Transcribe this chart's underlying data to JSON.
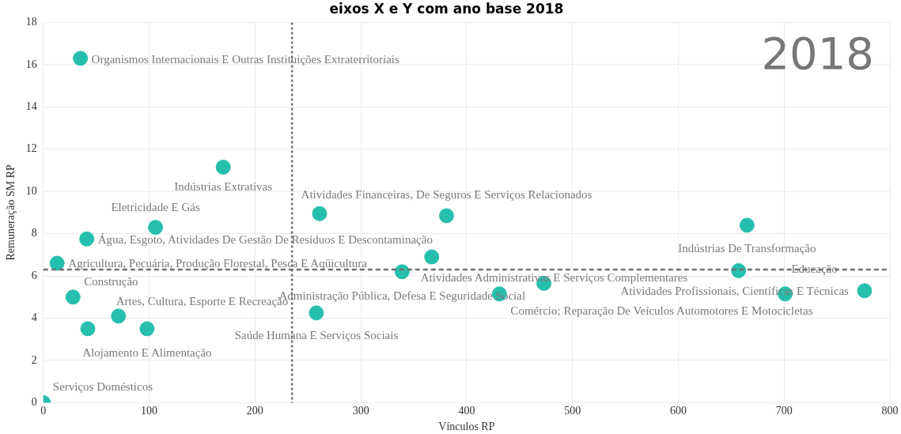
{
  "chart_data": {
    "type": "scatter",
    "title": "eixos X e Y com ano base 2018",
    "xlabel": "Vínculos RP",
    "ylabel": "Remuneração SM RP",
    "x": [
      35,
      170,
      261,
      381,
      106,
      41,
      13,
      367,
      339,
      657,
      665,
      28,
      71,
      42,
      98,
      258,
      473,
      431,
      701,
      776,
      0
    ],
    "series": [
      {
        "color": "#26bfad",
        "values": [
          16.3,
          11.15,
          8.95,
          8.85,
          8.3,
          7.75,
          6.6,
          6.9,
          6.2,
          6.25,
          8.4,
          5.0,
          4.1,
          3.5,
          3.5,
          4.25,
          5.65,
          5.15,
          5.15,
          5.3,
          0
        ]
      }
    ],
    "xlim": [
      0,
      800
    ],
    "xticks": [
      0,
      100,
      200,
      300,
      400,
      500,
      600,
      700,
      800
    ],
    "ylim": [
      0,
      18
    ],
    "yticks": [
      0,
      2,
      4,
      6,
      8,
      10,
      12,
      14,
      16,
      18
    ],
    "grid": true,
    "marker": "circle",
    "legend": false,
    "ref_lines": [
      {
        "axis": "x",
        "value": 235,
        "color": "#707070",
        "line_style": "dotted"
      },
      {
        "axis": "y",
        "value": 6.3,
        "color": "#707070",
        "line_style": "dashed"
      }
    ],
    "annotations": [
      "2018",
      {
        "text": "Organismos Internacionais E Outras Instituições Extraterritoriais",
        "x": 35,
        "y": 16.3
      },
      {
        "text": "Indústrias Extrativas",
        "x": 170,
        "y": 11.15
      },
      {
        "text": "Atividades Financeiras, De Seguros E Serviços Relacionados",
        "x": 381,
        "y": 8.85
      },
      {
        "text": "Eletricidade E Gás",
        "x": 106,
        "y": 8.3
      },
      {
        "text": "Água, Esgoto, Atividades De Gestão De Resíduos E Descontaminação",
        "x": 41,
        "y": 7.75
      },
      {
        "text": "Agricultura, Pecuária, Produção Florestal, Pesca E Aqüicultura",
        "x": 13,
        "y": 6.6
      },
      {
        "text": "Atividades Administrativas E Serviços Complementares",
        "x": 367,
        "y": 6.9
      },
      {
        "text": "Administração Pública, Defesa E Seguridade Social",
        "x": 339,
        "y": 6.2
      },
      {
        "text": "Construção",
        "x": 28,
        "y": 5.0
      },
      {
        "text": "Artes, Cultura, Esporte E Recreação",
        "x": 71,
        "y": 4.1
      },
      {
        "text": "Saúde Humana E Serviços Sociais",
        "x": 258,
        "y": 4.25
      },
      {
        "text": "Alojamento E Alimentação",
        "x": 98,
        "y": 3.5
      },
      {
        "text": "Serviços Domésticos",
        "x": 0,
        "y": 0
      },
      {
        "text": "Indústrias De Transformação",
        "x": 665,
        "y": 8.4
      },
      {
        "text": "Educação",
        "x": 701,
        "y": 5.15
      },
      {
        "text": "Atividades Profissionais, Científicas E Técnicas",
        "x": 776,
        "y": 5.3
      },
      {
        "text": "Comércio; Reparação De Veículos Automotores E Motocicletas",
        "x": 431,
        "y": 5.15
      }
    ]
  }
}
